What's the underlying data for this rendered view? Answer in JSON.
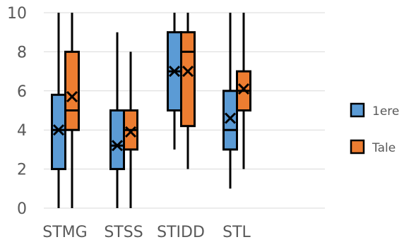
{
  "chart_data": {
    "type": "box",
    "categories": [
      "STMG",
      "STSS",
      "STIDD",
      "STL"
    ],
    "ylim": [
      0,
      10
    ],
    "yticks": [
      0,
      2,
      4,
      6,
      8,
      10
    ],
    "grid": "horizontal",
    "legend_position": "right",
    "series": [
      {
        "name": "1ere",
        "color": "#5B9BD5",
        "boxes": [
          {
            "min": 0,
            "q1": 2,
            "median": 4,
            "q3": 5.8,
            "max": 10,
            "mean": 4
          },
          {
            "min": 0,
            "q1": 2,
            "median": 3.2,
            "q3": 5,
            "max": 9,
            "mean": 3.2
          },
          {
            "min": 3,
            "q1": 5,
            "median": 7,
            "q3": 9,
            "max": 10,
            "mean": 7
          },
          {
            "min": 1,
            "q1": 3,
            "median": 4,
            "q3": 6,
            "max": 10,
            "mean": 4.6
          }
        ]
      },
      {
        "name": "Tale",
        "color": "#ED7D31",
        "boxes": [
          {
            "min": 0,
            "q1": 4,
            "median": 5,
            "q3": 8,
            "max": 10,
            "mean": 5.7
          },
          {
            "min": 0,
            "q1": 3,
            "median": 4,
            "q3": 5,
            "max": 8,
            "mean": 3.9
          },
          {
            "min": 2,
            "q1": 4.2,
            "median": 8,
            "q3": 9,
            "max": 10,
            "mean": 7
          },
          {
            "min": 2,
            "q1": 5,
            "median": 6,
            "q3": 7,
            "max": 10,
            "mean": 6.1
          }
        ]
      }
    ]
  }
}
